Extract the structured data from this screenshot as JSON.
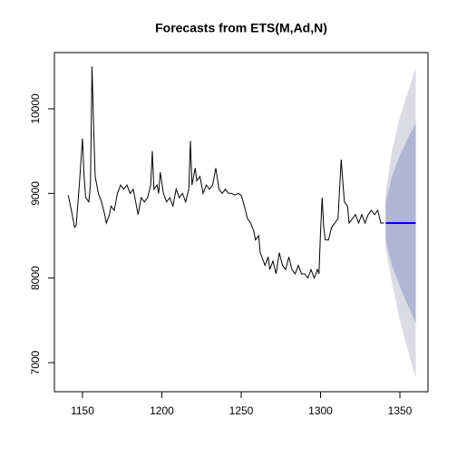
{
  "chart_data": {
    "type": "line",
    "title": "Forecasts from ETS(M,Ad,N)",
    "xlim": [
      1132.3,
      1367.7
    ],
    "ylim": [
      6657,
      10664
    ],
    "xticks": [
      1150,
      1200,
      1250,
      1300,
      1350
    ],
    "yticks": [
      7000,
      8000,
      9000,
      10000
    ],
    "x": [
      1141,
      1143,
      1145,
      1146,
      1148,
      1150,
      1151,
      1152,
      1154,
      1155,
      1156,
      1157,
      1158,
      1160,
      1162,
      1164,
      1165,
      1167,
      1168,
      1170,
      1172,
      1174,
      1176,
      1178,
      1180,
      1182,
      1184,
      1185,
      1187,
      1189,
      1191,
      1193,
      1194,
      1195,
      1197,
      1198,
      1199,
      1201,
      1203,
      1205,
      1207,
      1209,
      1211,
      1213,
      1215,
      1217,
      1218,
      1219,
      1221,
      1222,
      1224,
      1226,
      1228,
      1230,
      1232,
      1234,
      1236,
      1238,
      1240,
      1242,
      1244,
      1246,
      1248,
      1250,
      1252,
      1254,
      1256,
      1258,
      1259,
      1261,
      1262,
      1264,
      1265,
      1267,
      1268,
      1270,
      1272,
      1274,
      1276,
      1278,
      1280,
      1282,
      1284,
      1286,
      1288,
      1290,
      1292,
      1294,
      1296,
      1298,
      1299,
      1300,
      1301,
      1302,
      1303,
      1305,
      1307,
      1309,
      1311,
      1313,
      1315,
      1317,
      1318,
      1320,
      1322,
      1324,
      1326,
      1328,
      1330,
      1332,
      1334,
      1336,
      1338,
      1340
    ],
    "series": [
      {
        "color": "#000000",
        "values": [
          8980,
          8800,
          8600,
          8620,
          9100,
          9650,
          9200,
          8950,
          8900,
          9100,
          10500,
          9800,
          9200,
          9000,
          8900,
          8750,
          8650,
          8750,
          8850,
          8800,
          9000,
          9100,
          9050,
          9100,
          9000,
          9050,
          8850,
          8750,
          8950,
          8900,
          8950,
          9100,
          9500,
          9050,
          9100,
          9000,
          9250,
          9000,
          8900,
          8950,
          8850,
          9050,
          8950,
          9000,
          8900,
          9050,
          9620,
          9100,
          9300,
          9150,
          9200,
          9000,
          9100,
          9050,
          9100,
          9300,
          9050,
          9000,
          9050,
          9000,
          9000,
          8980,
          9000,
          8980,
          8850,
          8700,
          8650,
          8550,
          8450,
          8500,
          8300,
          8200,
          8150,
          8250,
          8100,
          8200,
          8050,
          8300,
          8150,
          8100,
          8250,
          8100,
          8050,
          8150,
          8050,
          8050,
          8000,
          8100,
          8000,
          8100,
          8050,
          8550,
          8950,
          8600,
          8450,
          8450,
          8600,
          8650,
          8700,
          9400,
          8900,
          8850,
          8650,
          8700,
          8750,
          8650,
          8750,
          8650,
          8750,
          8800,
          8750,
          8800,
          8650,
          8650
        ]
      }
    ],
    "forecast": {
      "x": [
        1341,
        1345,
        1350,
        1355,
        1360
      ],
      "mean": [
        8650,
        8650,
        8650,
        8650,
        8650
      ],
      "hi95": [
        9000,
        9500,
        9900,
        10200,
        10480
      ],
      "lo95": [
        8350,
        7950,
        7500,
        7150,
        6820
      ],
      "hi80": [
        8880,
        9200,
        9450,
        9650,
        9830
      ],
      "lo80": [
        8450,
        8150,
        7900,
        7680,
        7470
      ],
      "color": "#0000ff",
      "color95": "#dbdbe3",
      "color80": "#b1b5d3"
    }
  }
}
